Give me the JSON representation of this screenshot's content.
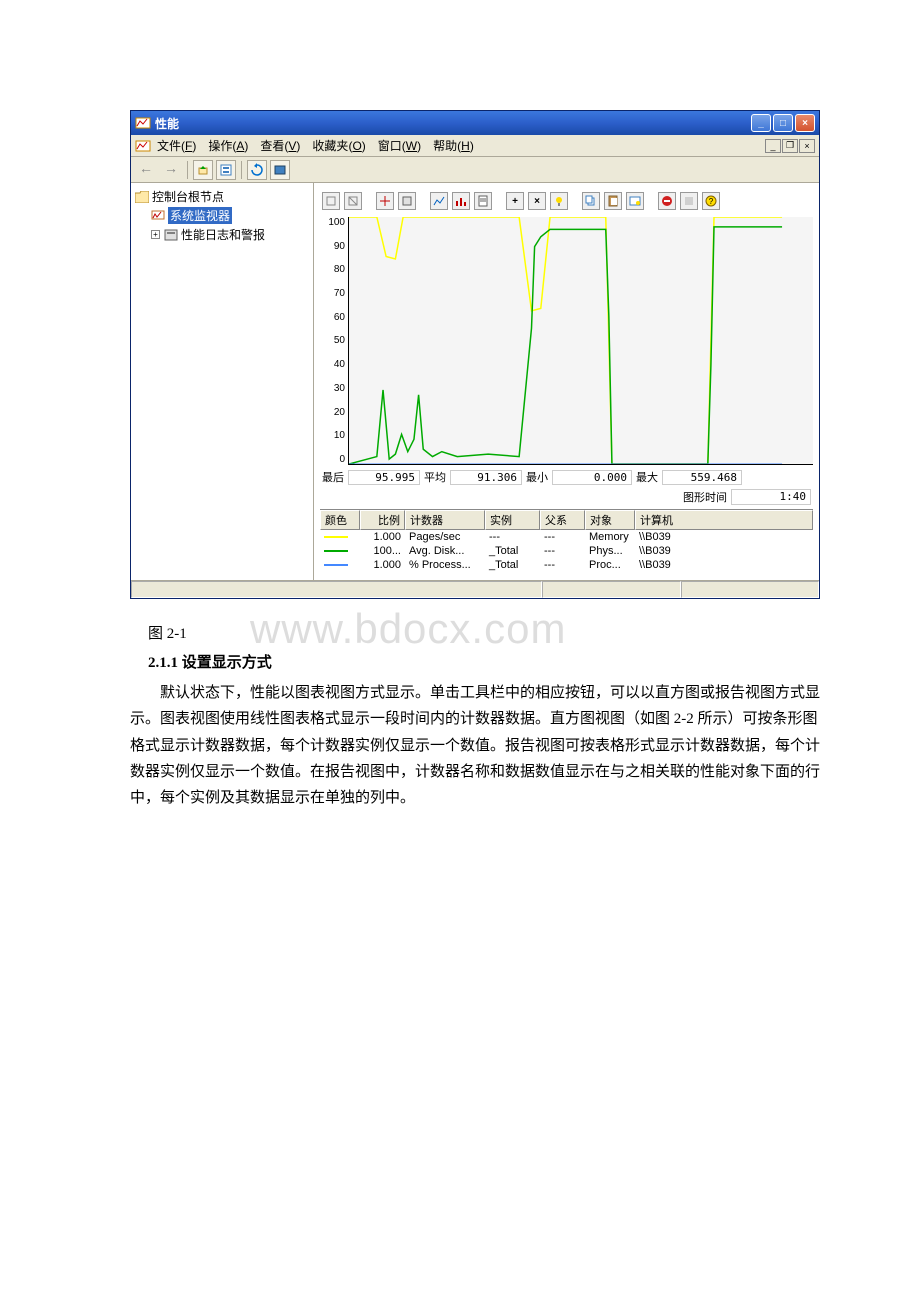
{
  "window": {
    "title": "性能",
    "min_btn": "_",
    "max_btn": "□",
    "close_btn": "×"
  },
  "menubar": {
    "items": [
      {
        "label": "文件",
        "key": "F"
      },
      {
        "label": "操作",
        "key": "A"
      },
      {
        "label": "查看",
        "key": "V"
      },
      {
        "label": "收藏夹",
        "key": "O"
      },
      {
        "label": "窗口",
        "key": "W"
      },
      {
        "label": "帮助",
        "key": "H"
      }
    ],
    "mdi_min": "_",
    "mdi_restore": "❐",
    "mdi_close": "×"
  },
  "tree": {
    "root": "控制台根节点",
    "node1": "系统监视器",
    "node2": "性能日志和警报"
  },
  "chart": {
    "type": "line",
    "y_ticks": [
      100,
      90,
      80,
      70,
      60,
      50,
      40,
      30,
      20,
      10,
      0
    ],
    "ylim": [
      0,
      100
    ],
    "width_units": 300,
    "background_color": "#f5f5f5",
    "axis_color": "#000000",
    "series": [
      {
        "name": "pages_sec",
        "color": "#ffff00",
        "stroke_width": 1.5,
        "points": [
          {
            "x": 0,
            "y": 100
          },
          {
            "x": 18,
            "y": 100
          },
          {
            "x": 24,
            "y": 84
          },
          {
            "x": 30,
            "y": 83
          },
          {
            "x": 35,
            "y": 100
          },
          {
            "x": 110,
            "y": 100
          },
          {
            "x": 118,
            "y": 62
          },
          {
            "x": 124,
            "y": 63
          },
          {
            "x": 130,
            "y": 100
          },
          {
            "x": 166,
            "y": 100
          },
          {
            "x": 170,
            "y": 0
          },
          {
            "x": 232,
            "y": 0
          },
          {
            "x": 236,
            "y": 100
          },
          {
            "x": 280,
            "y": 100
          }
        ]
      },
      {
        "name": "avg_disk",
        "color": "#00aa00",
        "stroke_width": 1.5,
        "points": [
          {
            "x": 0,
            "y": 0
          },
          {
            "x": 18,
            "y": 3
          },
          {
            "x": 22,
            "y": 30
          },
          {
            "x": 26,
            "y": 2
          },
          {
            "x": 30,
            "y": 4
          },
          {
            "x": 34,
            "y": 12
          },
          {
            "x": 38,
            "y": 5
          },
          {
            "x": 42,
            "y": 10
          },
          {
            "x": 45,
            "y": 28
          },
          {
            "x": 48,
            "y": 6
          },
          {
            "x": 54,
            "y": 3
          },
          {
            "x": 60,
            "y": 5
          },
          {
            "x": 70,
            "y": 3
          },
          {
            "x": 90,
            "y": 4
          },
          {
            "x": 110,
            "y": 3
          },
          {
            "x": 118,
            "y": 55
          },
          {
            "x": 120,
            "y": 88
          },
          {
            "x": 124,
            "y": 92
          },
          {
            "x": 130,
            "y": 95
          },
          {
            "x": 166,
            "y": 95
          },
          {
            "x": 168,
            "y": 60
          },
          {
            "x": 170,
            "y": 0
          },
          {
            "x": 232,
            "y": 0
          },
          {
            "x": 234,
            "y": 40
          },
          {
            "x": 236,
            "y": 96
          },
          {
            "x": 280,
            "y": 96
          }
        ]
      },
      {
        "name": "processor",
        "color": "#4488ff",
        "stroke_width": 1,
        "points": [
          {
            "x": 0,
            "y": 0
          },
          {
            "x": 280,
            "y": 0
          }
        ]
      }
    ]
  },
  "stats": {
    "last_label": "最后",
    "last_val": "95.995",
    "avg_label": "平均",
    "avg_val": "91.306",
    "min_label": "最小",
    "min_val": "0.000",
    "max_label": "最大",
    "max_val": "559.468",
    "duration_label": "图形时间",
    "duration_val": "1:40"
  },
  "counter_table": {
    "headers": {
      "color": "颜色",
      "scale": "比例",
      "counter": "计数器",
      "instance": "实例",
      "parent": "父系",
      "object": "对象",
      "computer": "计算机"
    },
    "rows": [
      {
        "color": "#ffff00",
        "scale": "1.000",
        "counter": "Pages/sec",
        "instance": "---",
        "parent": "---",
        "object": "Memory",
        "computer": "\\\\B039"
      },
      {
        "color": "#00aa00",
        "scale": "100...",
        "counter": "Avg. Disk...",
        "instance": "_Total",
        "parent": "---",
        "object": "Phys...",
        "computer": "\\\\B039"
      },
      {
        "color": "#4488ff",
        "scale": "1.000",
        "counter": "% Process...",
        "instance": "_Total",
        "parent": "---",
        "object": "Proc...",
        "computer": "\\\\B039"
      }
    ]
  },
  "doc": {
    "caption": "图 2-1",
    "watermark": "www.bdocx.com",
    "subheading": "2.1.1 设置显示方式",
    "body": "默认状态下，性能以图表视图方式显示。单击工具栏中的相应按钮，可以以直方图或报告视图方式显示。图表视图使用线性图表格式显示一段时间内的计数器数据。直方图视图（如图 2-2 所示）可按条形图格式显示计数器数据，每个计数器实例仅显示一个数值。报告视图可按表格形式显示计数器数据，每个计数器实例仅显示一个数值。在报告视图中，计数器名称和数据数值显示在与之相关联的性能对象下面的行中，每个实例及其数据显示在单独的列中。"
  }
}
